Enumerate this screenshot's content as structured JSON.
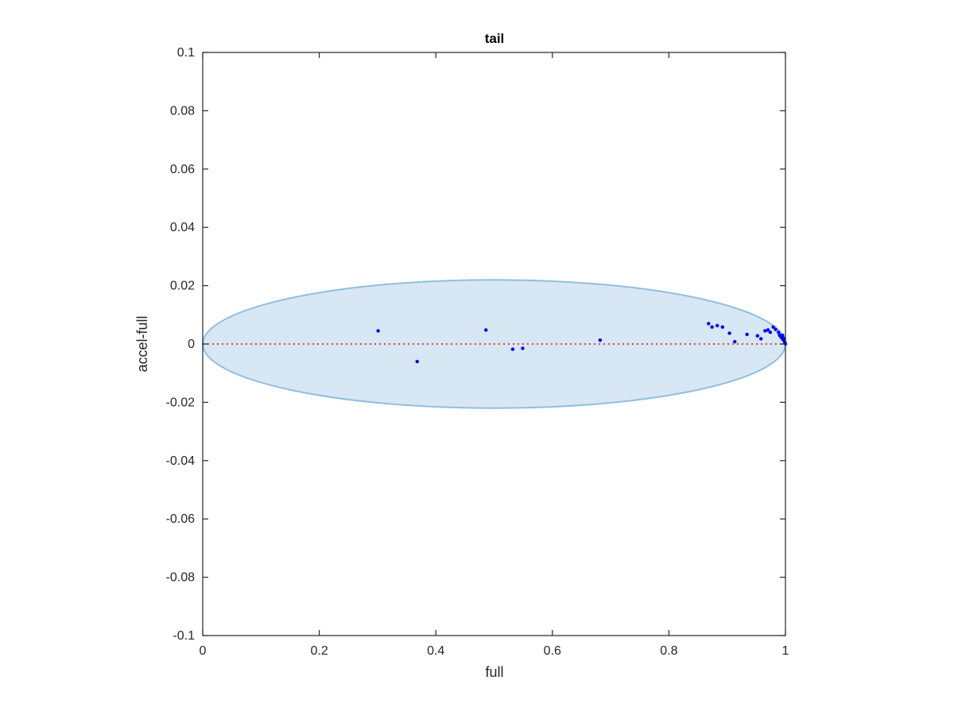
{
  "chart_data": {
    "type": "scatter",
    "title": "tail",
    "xlabel": "full",
    "ylabel": "accel-full",
    "xlim": [
      0,
      1
    ],
    "ylim": [
      -0.1,
      0.1
    ],
    "xticks": [
      0,
      0.2,
      0.4,
      0.6,
      0.8,
      1
    ],
    "xtick_labels": [
      "0",
      "0.2",
      "0.4",
      "0.6",
      "0.8",
      "1"
    ],
    "yticks": [
      0.1,
      0.08,
      0.06,
      0.04,
      0.02,
      0,
      -0.02,
      -0.04,
      -0.06,
      -0.08,
      -0.1
    ],
    "ytick_labels": [
      "0.1",
      "0.08",
      "0.06",
      "0.04",
      "0.02",
      "0",
      "-0.02",
      "-0.04",
      "-0.06",
      "-0.08",
      "-0.1"
    ],
    "grid": false,
    "ellipse": {
      "center": [
        0.5,
        0
      ],
      "semi_x": 0.5,
      "semi_y": 0.022,
      "fill": "#d8e7f4",
      "stroke": "#8fbfe0"
    },
    "reference_line": {
      "y": 0,
      "color": "#ff0000",
      "style": "dotted"
    },
    "points": {
      "color": "#0000ff",
      "x": [
        0.301,
        0.368,
        0.486,
        0.532,
        0.549,
        0.682,
        0.868,
        0.874,
        0.883,
        0.892,
        0.904,
        0.913,
        0.934,
        0.952,
        0.958,
        0.965,
        0.97,
        0.974,
        0.979,
        0.983,
        0.988,
        0.99,
        0.992,
        0.994,
        0.995,
        0.996,
        0.997,
        0.998,
        0.999,
        1.0
      ],
      "y": [
        0.0045,
        -0.006,
        0.0048,
        -0.0018,
        -0.0015,
        0.0013,
        0.007,
        0.0058,
        0.0063,
        0.0058,
        0.0037,
        0.0008,
        0.0033,
        0.0028,
        0.0018,
        0.0045,
        0.0048,
        0.004,
        0.0058,
        0.005,
        0.004,
        0.003,
        0.0025,
        0.002,
        0.003,
        0.0015,
        0.002,
        0.001,
        0.0005,
        0.0
      ]
    }
  }
}
